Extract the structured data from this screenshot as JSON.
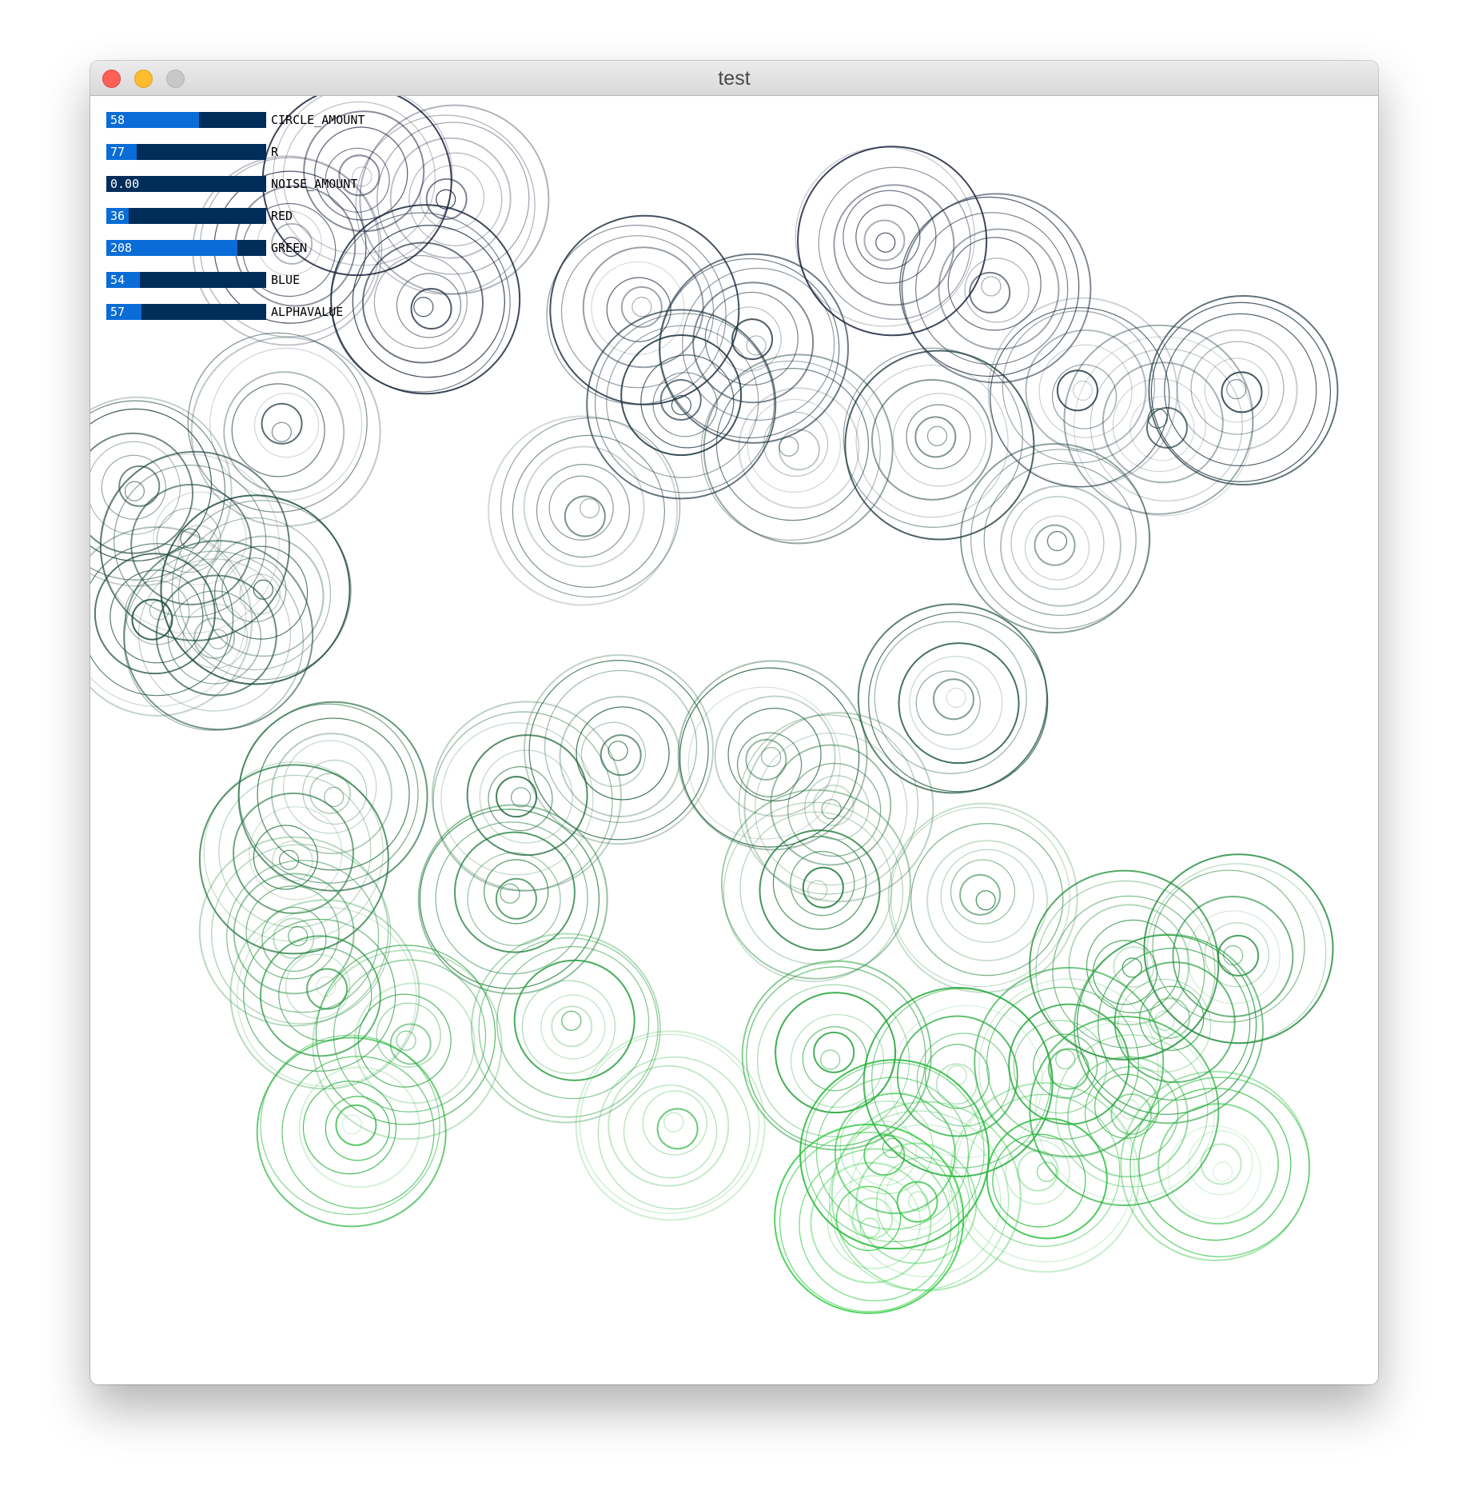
{
  "window": {
    "title": "test",
    "buttons": {
      "close": "close",
      "minimize": "minimize",
      "zoom": "zoom"
    }
  },
  "gui": {
    "sliders": [
      {
        "label": "CIRCLE_AMOUNT",
        "value": "58",
        "fraction": 0.58
      },
      {
        "label": "R",
        "value": "77",
        "fraction": 0.19
      },
      {
        "label": "NOISE_AMOUNT",
        "value": "0.00",
        "fraction": 0.0
      },
      {
        "label": "RED",
        "value": "36",
        "fraction": 0.14
      },
      {
        "label": "GREEN",
        "value": "208",
        "fraction": 0.82
      },
      {
        "label": "BLUE",
        "value": "54",
        "fraction": 0.21
      },
      {
        "label": "ALPHAVALUE",
        "value": "57",
        "fraction": 0.22
      }
    ]
  },
  "colors": {
    "slider_track": "#002d5a",
    "slider_fill": "#0a6cd6",
    "circle_dark": "#1e2340",
    "circle_mid": "#1e5a3c",
    "circle_green": "#24d036"
  }
}
